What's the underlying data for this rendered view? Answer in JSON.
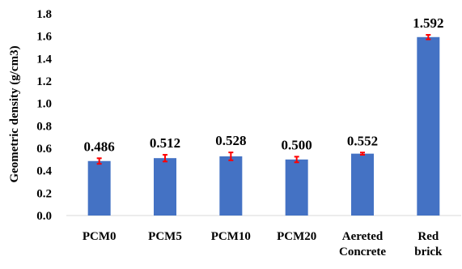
{
  "chart_data": {
    "type": "bar",
    "title": "",
    "xlabel": "",
    "ylabel": "Geometric density (g/cm3)",
    "categories": [
      [
        "PCM0"
      ],
      [
        "PCM5"
      ],
      [
        "PCM10"
      ],
      [
        "PCM20"
      ],
      [
        "Aereted",
        "Concrete"
      ],
      [
        "Red",
        "brick"
      ]
    ],
    "values": [
      0.486,
      0.512,
      0.528,
      0.5,
      0.552,
      1.592
    ],
    "value_labels": [
      "0.486",
      "0.512",
      "0.528",
      "0.500",
      "0.552",
      "1.592"
    ],
    "error": [
      0.025,
      0.03,
      0.035,
      0.025,
      0.01,
      0.02
    ],
    "ylim": [
      0,
      1.8
    ],
    "yticks": [
      "0.0",
      "0.2",
      "0.4",
      "0.6",
      "0.8",
      "1.0",
      "1.2",
      "1.4",
      "1.6",
      "1.8"
    ],
    "grid": false,
    "legend": "none",
    "bar_color": "#4472C4",
    "error_bar_color": "#FF0000"
  }
}
